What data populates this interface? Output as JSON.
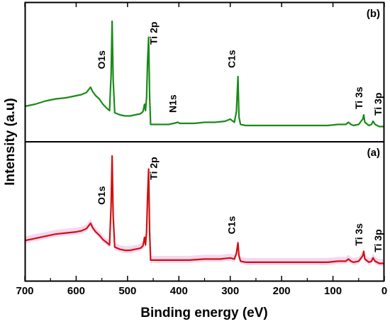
{
  "chart_data": {
    "type": "line",
    "xlabel": "Binding energy (eV)",
    "ylabel": "Intensity (a.u)",
    "xlim": [
      700,
      0
    ],
    "x_reversed": true,
    "xticks": [
      700,
      600,
      500,
      400,
      300,
      200,
      100,
      0
    ],
    "y_ticks_shown": false,
    "grid": false,
    "panels": [
      {
        "label": "(b)",
        "color": "#1a8a1a",
        "position": "top",
        "series": {
          "x": [
            700,
            680,
            660,
            640,
            620,
            600,
            590,
            580,
            572,
            568,
            562,
            555,
            548,
            540,
            535,
            532,
            530,
            528,
            525,
            515,
            505,
            495,
            485,
            475,
            470,
            467,
            465,
            463,
            461,
            459,
            457,
            455,
            450,
            440,
            430,
            420,
            410,
            402,
            398,
            390,
            370,
            350,
            330,
            310,
            300,
            292,
            288,
            285,
            283,
            280,
            270,
            250,
            230,
            200,
            170,
            140,
            110,
            90,
            75,
            70,
            65,
            60,
            50,
            42,
            40,
            38,
            30,
            25,
            22,
            18,
            10,
            0
          ],
          "y": [
            0.2,
            0.22,
            0.25,
            0.27,
            0.28,
            0.3,
            0.31,
            0.33,
            0.38,
            0.34,
            0.3,
            0.27,
            0.22,
            0.18,
            0.16,
            0.5,
            1.0,
            0.45,
            0.14,
            0.12,
            0.11,
            0.11,
            0.12,
            0.13,
            0.15,
            0.22,
            0.16,
            0.28,
            0.62,
            0.85,
            0.3,
            0.03,
            0.03,
            0.03,
            0.03,
            0.03,
            0.04,
            0.05,
            0.04,
            0.04,
            0.04,
            0.05,
            0.05,
            0.06,
            0.08,
            0.05,
            0.15,
            0.48,
            0.1,
            0.03,
            0.02,
            0.02,
            0.02,
            0.02,
            0.02,
            0.02,
            0.02,
            0.03,
            0.03,
            0.05,
            0.03,
            0.02,
            0.03,
            0.08,
            0.12,
            0.05,
            0.02,
            0.03,
            0.06,
            0.03,
            0.01,
            0.01
          ]
        },
        "annotations": [
          {
            "text": "O1s",
            "x": 530
          },
          {
            "text": "Ti 2p",
            "x": 459
          },
          {
            "text": "N1s",
            "x": 400
          },
          {
            "text": "C1s",
            "x": 285
          },
          {
            "text": "Ti 3s",
            "x": 40
          },
          {
            "text": "Ti 3p",
            "x": 22
          }
        ]
      },
      {
        "label": "(a)",
        "color": "#d01010",
        "highlight_color": "#f2c6ea",
        "position": "bottom",
        "series": {
          "x": [
            700,
            680,
            660,
            640,
            620,
            600,
            590,
            580,
            572,
            568,
            562,
            555,
            548,
            540,
            535,
            532,
            530,
            528,
            525,
            515,
            505,
            495,
            485,
            475,
            470,
            467,
            465,
            463,
            461,
            459,
            457,
            455,
            450,
            440,
            420,
            400,
            380,
            350,
            320,
            300,
            292,
            288,
            285,
            283,
            280,
            270,
            250,
            230,
            200,
            170,
            140,
            110,
            90,
            75,
            70,
            65,
            60,
            50,
            42,
            40,
            38,
            30,
            25,
            22,
            18,
            10,
            0
          ],
          "y": [
            0.22,
            0.24,
            0.26,
            0.28,
            0.29,
            0.3,
            0.31,
            0.33,
            0.38,
            0.34,
            0.3,
            0.27,
            0.23,
            0.2,
            0.18,
            0.55,
            1.0,
            0.45,
            0.16,
            0.14,
            0.13,
            0.13,
            0.14,
            0.15,
            0.17,
            0.25,
            0.18,
            0.3,
            0.62,
            0.88,
            0.3,
            0.04,
            0.04,
            0.04,
            0.04,
            0.04,
            0.04,
            0.05,
            0.05,
            0.06,
            0.05,
            0.1,
            0.2,
            0.08,
            0.03,
            0.02,
            0.02,
            0.02,
            0.02,
            0.02,
            0.02,
            0.02,
            0.03,
            0.03,
            0.05,
            0.03,
            0.02,
            0.03,
            0.08,
            0.12,
            0.05,
            0.02,
            0.03,
            0.06,
            0.03,
            0.01,
            0.01
          ]
        },
        "annotations": [
          {
            "text": "O1s",
            "x": 530
          },
          {
            "text": "Ti 2p",
            "x": 459
          },
          {
            "text": "C1s",
            "x": 285
          },
          {
            "text": "Ti 3s",
            "x": 40
          },
          {
            "text": "Ti 3p",
            "x": 22
          }
        ]
      }
    ]
  }
}
